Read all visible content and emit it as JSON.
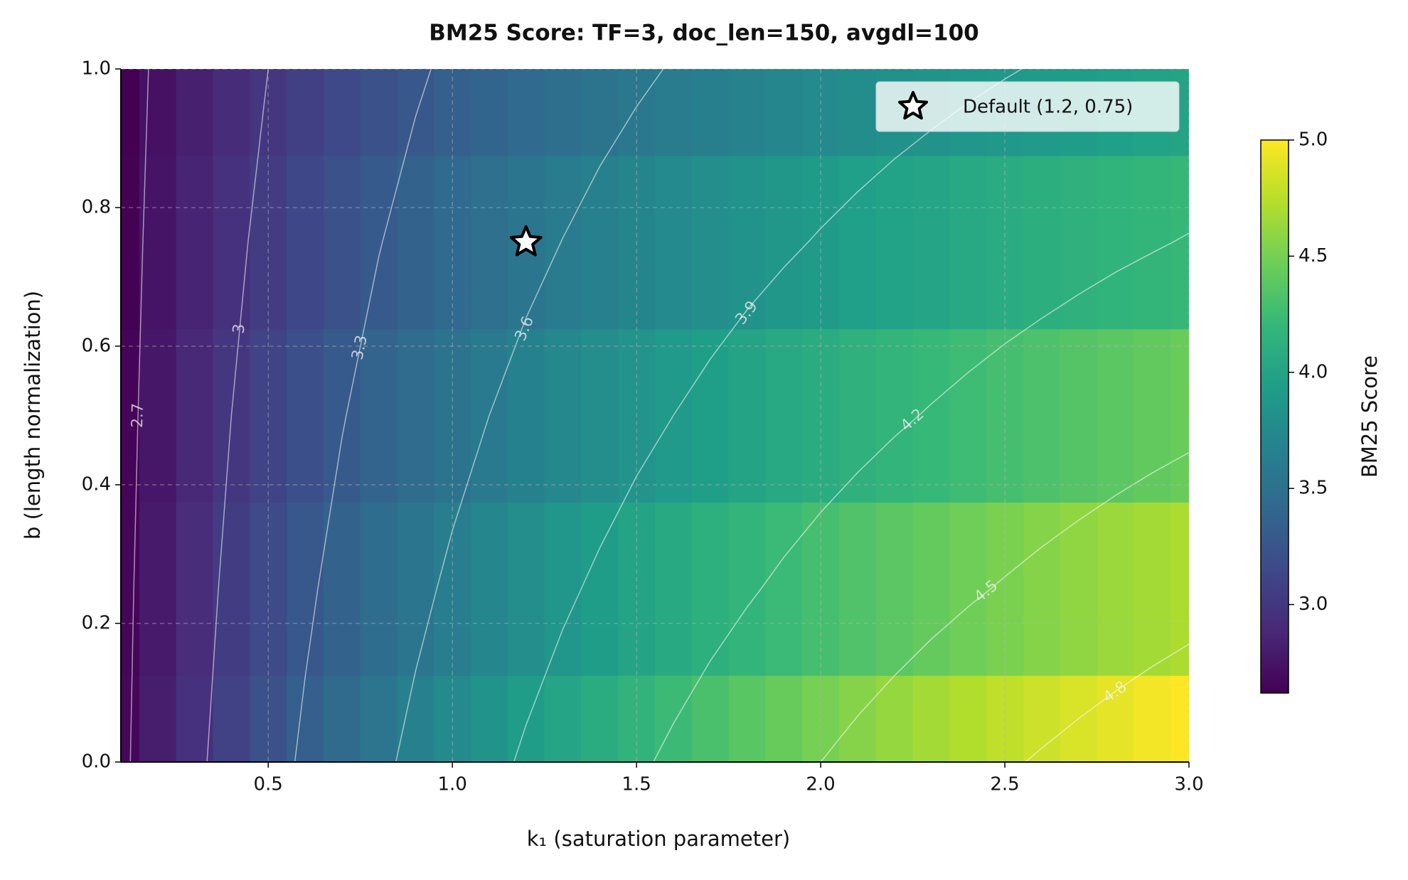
{
  "chart_data": {
    "type": "heatmap",
    "title": "BM25 Score: TF=3, doc_len=150, avgdl=100",
    "x_label": "k₁ (saturation parameter)",
    "y_label": "b (length normalization)",
    "colormap": "viridis",
    "x": [
      0.1,
      0.2,
      0.3,
      0.4,
      0.5,
      0.6,
      0.7,
      0.8,
      0.9,
      1.0,
      1.1,
      1.2,
      1.3,
      1.4,
      1.5,
      1.6,
      1.7,
      1.8,
      1.9,
      2.0,
      2.1,
      2.2,
      2.3,
      2.4,
      2.5,
      2.6,
      2.7,
      2.8,
      2.9,
      3.0
    ],
    "y": [
      0,
      0.25,
      0.5,
      0.75,
      1
    ],
    "z": [
      [
        2.661,
        2.813,
        2.955,
        3.088,
        3.214,
        3.333,
        3.446,
        3.553,
        3.654,
        3.75,
        3.841,
        3.929,
        4.012,
        4.091,
        4.167,
        4.239,
        4.309,
        4.375,
        4.439,
        4.5,
        4.559,
        4.615,
        4.67,
        4.722,
        4.773,
        4.821,
        4.868,
        4.914,
        4.958,
        5.0
      ],
      [
        2.651,
        2.791,
        2.921,
        3.043,
        3.158,
        3.265,
        3.366,
        3.462,
        3.551,
        3.636,
        3.717,
        3.793,
        3.866,
        3.934,
        4.0,
        4.063,
        4.122,
        4.179,
        4.234,
        4.286,
        4.336,
        4.384,
        4.43,
        4.474,
        4.516,
        4.557,
        4.596,
        4.634,
        4.671,
        4.706
      ],
      [
        2.64,
        2.769,
        2.889,
        3.0,
        3.103,
        3.2,
        3.29,
        3.375,
        3.455,
        3.529,
        3.6,
        3.667,
        3.73,
        3.789,
        3.846,
        3.9,
        3.951,
        4.0,
        4.047,
        4.091,
        4.133,
        4.174,
        4.213,
        4.25,
        4.286,
        4.32,
        4.353,
        4.385,
        4.415,
        4.444
      ],
      [
        2.629,
        2.748,
        2.857,
        2.958,
        3.051,
        3.137,
        3.218,
        3.293,
        3.363,
        3.429,
        3.49,
        3.548,
        3.603,
        3.655,
        3.704,
        3.75,
        3.794,
        3.836,
        3.875,
        3.913,
        3.949,
        3.983,
        4.016,
        4.048,
        4.078,
        4.106,
        4.134,
        4.161,
        4.186,
        4.211
      ],
      [
        2.619,
        2.727,
        2.826,
        2.917,
        3.0,
        3.077,
        3.148,
        3.214,
        3.276,
        3.333,
        3.387,
        3.438,
        3.485,
        3.529,
        3.571,
        3.611,
        3.649,
        3.684,
        3.718,
        3.75,
        3.78,
        3.81,
        3.837,
        3.864,
        3.889,
        3.913,
        3.936,
        3.958,
        3.98,
        4.0
      ]
    ],
    "contour_levels": [
      2.7,
      3.0,
      3.3,
      3.6,
      3.9,
      4.2,
      4.5,
      4.8
    ],
    "xlim": [
      0.1,
      3.0
    ],
    "ylim": [
      0,
      1
    ],
    "xticks": [
      0.5,
      {
        "value": 1,
        "label": "1.0"
      },
      1.5,
      {
        "value": 2,
        "label": "2.0"
      },
      2.5,
      {
        "value": 3,
        "label": "3.0"
      }
    ],
    "yticks": [
      {
        "value": 0,
        "label": "0.0"
      },
      0.2,
      0.4,
      0.6,
      0.8,
      {
        "value": 1,
        "label": "1.0"
      }
    ],
    "grid": true,
    "markers": [
      {
        "name": "Default (1.2, 0.75)",
        "x": 1.2,
        "y": 0.75
      }
    ],
    "legend": "upper right",
    "colorbar": {
      "label": "BM25 Score",
      "clim": [
        2.619,
        5.0
      ],
      "ticks": [
        {
          "value": 3,
          "label": "3.0"
        },
        3.5,
        {
          "value": 4,
          "label": "4.0"
        },
        4.5,
        {
          "value": 5,
          "label": "5.0"
        }
      ]
    }
  }
}
